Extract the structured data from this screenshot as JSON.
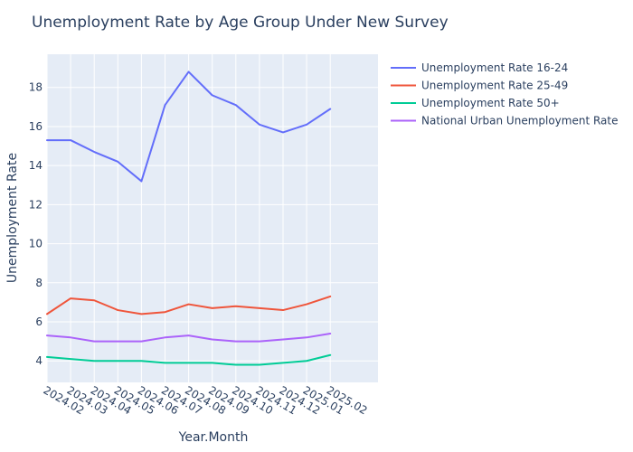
{
  "chart_data": {
    "type": "line",
    "title": "Unemployment Rate by Age Group Under New Survey",
    "xlabel": "Year.Month",
    "ylabel": "Unemployment Rate",
    "categories": [
      "2024.02",
      "2024.03",
      "2024.04",
      "2024.05",
      "2024.06",
      "2024.07",
      "2024.08",
      "2024.09",
      "2024.10",
      "2024.11",
      "2024.12",
      "2025.01",
      "2025.02"
    ],
    "ylim": [
      2.9,
      19.7
    ],
    "yticks": [
      4,
      6,
      8,
      10,
      12,
      14,
      16,
      18
    ],
    "grid": true,
    "legend_position": "top-right outside",
    "plot_background": "#e5ecf6",
    "series": [
      {
        "name": "Unemployment Rate 16-24",
        "color": "#636efa",
        "values": [
          15.3,
          15.3,
          14.7,
          14.2,
          13.2,
          17.1,
          18.8,
          17.6,
          17.1,
          16.1,
          15.7,
          16.1,
          16.9
        ]
      },
      {
        "name": "Unemployment Rate 25-49",
        "color": "#ef553b",
        "values": [
          6.4,
          7.2,
          7.1,
          6.6,
          6.4,
          6.5,
          6.9,
          6.7,
          6.8,
          6.7,
          6.6,
          6.9,
          7.3
        ]
      },
      {
        "name": "Unemployment Rate 50+",
        "color": "#00cc96",
        "values": [
          4.2,
          4.1,
          4.0,
          4.0,
          4.0,
          3.9,
          3.9,
          3.9,
          3.8,
          3.8,
          3.9,
          4.0,
          4.3
        ]
      },
      {
        "name": "National Urban Unemployment Rate",
        "color": "#ab63fa",
        "values": [
          5.3,
          5.2,
          5.0,
          5.0,
          5.0,
          5.2,
          5.3,
          5.1,
          5.0,
          5.0,
          5.1,
          5.2,
          5.4
        ]
      }
    ]
  }
}
